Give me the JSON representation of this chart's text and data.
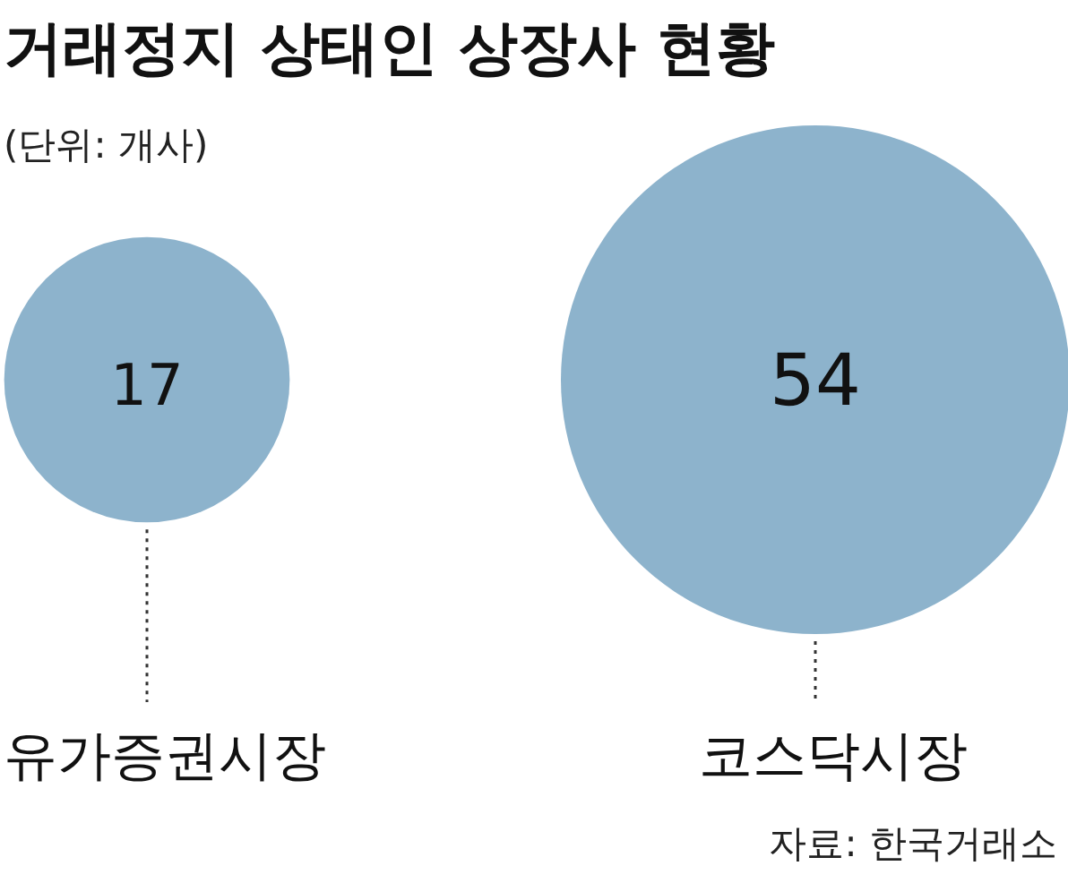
{
  "chart_data": {
    "type": "other",
    "title": "거래정지 상태인 상장사 현황",
    "subtitle": "(단위: 개사)",
    "categories": [
      "유가증권시장",
      "코스닥시장"
    ],
    "values": [
      17,
      54
    ],
    "color": "#8db3cc",
    "data_labels": true,
    "annotations": [
      "자료: 한국거래소"
    ]
  }
}
